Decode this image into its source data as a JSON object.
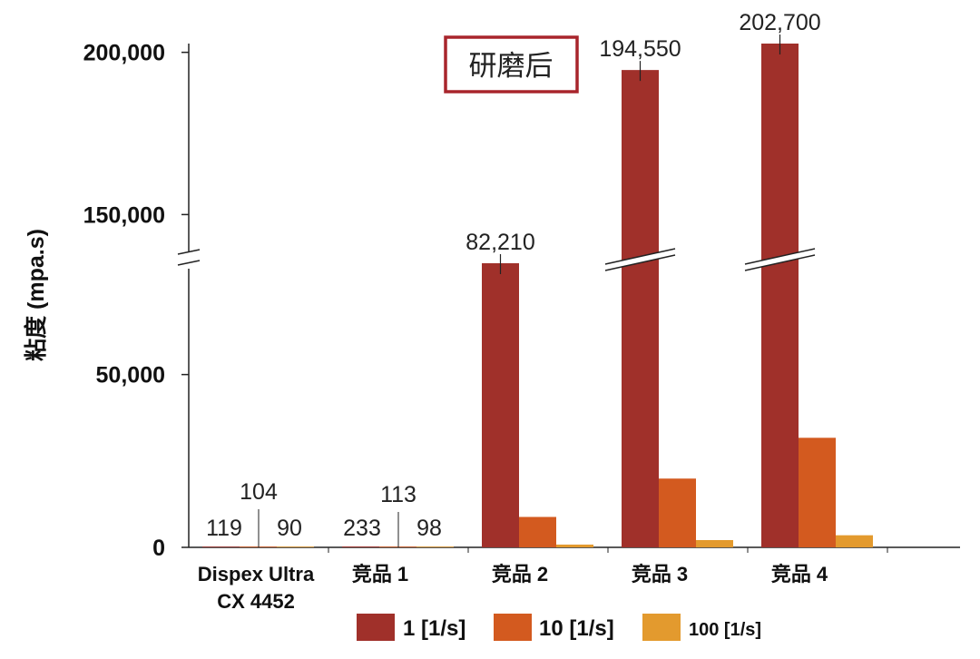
{
  "chart_data": {
    "type": "bar",
    "title": "",
    "annotation": "研磨后",
    "ylabel": "粘度 (mpa.s)",
    "xlabel": "",
    "categories": [
      [
        "Dispex Ultra",
        "CX 4452"
      ],
      [
        "竞品 1"
      ],
      [
        "竞品 2"
      ],
      [
        "竞品 3"
      ],
      [
        "竞品 4"
      ]
    ],
    "series": [
      {
        "name": "1 [1/s]",
        "color": "#A0302A",
        "values": [
          119,
          233,
          82210,
          194550,
          202700
        ]
      },
      {
        "name": "10 [1/s]",
        "color": "#D35A1F",
        "values": [
          104,
          113,
          8800,
          19900,
          31700
        ]
      },
      {
        "name": "100 [1/s]",
        "color": "#E39A2E",
        "values": [
          90,
          98,
          800,
          2100,
          3500
        ]
      }
    ],
    "data_labels": [
      [
        "119",
        "104",
        "90"
      ],
      [
        "233",
        "113",
        "98"
      ],
      [
        "82,210",
        null,
        null
      ],
      [
        "194,550",
        null,
        null
      ],
      [
        "202,700",
        null,
        null
      ]
    ],
    "yticks": [
      {
        "value": 0,
        "label": "0"
      },
      {
        "value": 50000,
        "label": "50,000"
      },
      {
        "value": 150000,
        "label": "150,000"
      },
      {
        "value": 200000,
        "label": "200,000"
      }
    ],
    "axis_break": [
      82210,
      135000
    ],
    "ylim": [
      0,
      202700
    ],
    "legend_position": "bottom",
    "grid": false
  }
}
